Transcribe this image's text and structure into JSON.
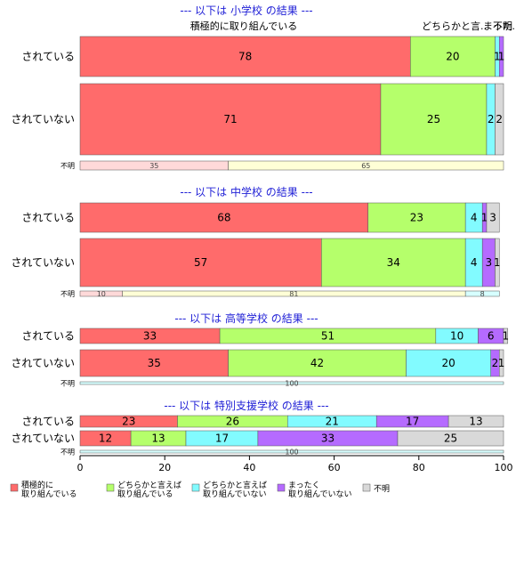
{
  "top_labels": [
    "積極的に取り組んでいる",
    "どちらかと言..",
    "まった..",
    "不明"
  ],
  "colors": {
    "active": "#ff6b6b",
    "somewhat_active": "#b5ff6b",
    "somewhat_inactive": "#82fbff",
    "not_at_all": "#b56bff",
    "unknown": "#d9d9d9",
    "unknown_yes": "#ffd9d9",
    "unknown_no": "#ffffd6",
    "unknown_blank": "#d6ffff",
    "title": "#1f1fd6"
  },
  "chart_data": {
    "type": "bar",
    "orientation": "horizontal",
    "stacked": true,
    "xlim": [
      0,
      100
    ],
    "xticks": [
      0,
      20,
      40,
      60,
      80,
      100
    ],
    "legend": {
      "placement": "bottom",
      "entries": [
        {
          "label": "積極的に\n取り組んでいる",
          "color": "#ff6b6b"
        },
        {
          "label": "どちらかと言えば\n取り組んでいる",
          "color": "#b5ff6b"
        },
        {
          "label": "どちらかと言えば\n取り組んでいない",
          "color": "#82fbff"
        },
        {
          "label": "まったく\n取り組んでいない",
          "color": "#b56bff"
        },
        {
          "label": "不明",
          "color": "#d9d9d9"
        }
      ]
    },
    "panels": [
      {
        "title": "--- 以下は 小学校 の結果 ---",
        "rows": [
          {
            "label": "されている",
            "values": [
              78,
              20,
              1,
              1,
              0
            ]
          },
          {
            "label": "されていない",
            "values": [
              71,
              25,
              2,
              0,
              2
            ]
          }
        ],
        "unknown_row": {
          "label": "不明",
          "values": [
            35,
            65,
            0
          ]
        }
      },
      {
        "title": "--- 以下は 中学校 の結果 ---",
        "rows": [
          {
            "label": "されている",
            "values": [
              68,
              23,
              4,
              1,
              3
            ]
          },
          {
            "label": "されていない",
            "values": [
              57,
              34,
              4,
              3,
              1
            ]
          }
        ],
        "unknown_row": {
          "label": "不明",
          "values": [
            10,
            81,
            8
          ]
        }
      },
      {
        "title": "--- 以下は 高等学校 の結果 ---",
        "rows": [
          {
            "label": "されている",
            "values": [
              33,
              51,
              10,
              6,
              1
            ]
          },
          {
            "label": "されていない",
            "values": [
              35,
              42,
              20,
              2,
              1
            ]
          }
        ],
        "unknown_row": {
          "label": "不明",
          "values": [
            0,
            0,
            100
          ]
        }
      },
      {
        "title": "--- 以下は 特別支援学校 の結果 ---",
        "rows": [
          {
            "label": "されている",
            "values": [
              23,
              26,
              21,
              17,
              13
            ]
          },
          {
            "label": "されていない",
            "values": [
              12,
              13,
              17,
              33,
              25
            ]
          }
        ],
        "unknown_row": {
          "label": "不明",
          "values": [
            0,
            0,
            100
          ]
        }
      }
    ]
  }
}
